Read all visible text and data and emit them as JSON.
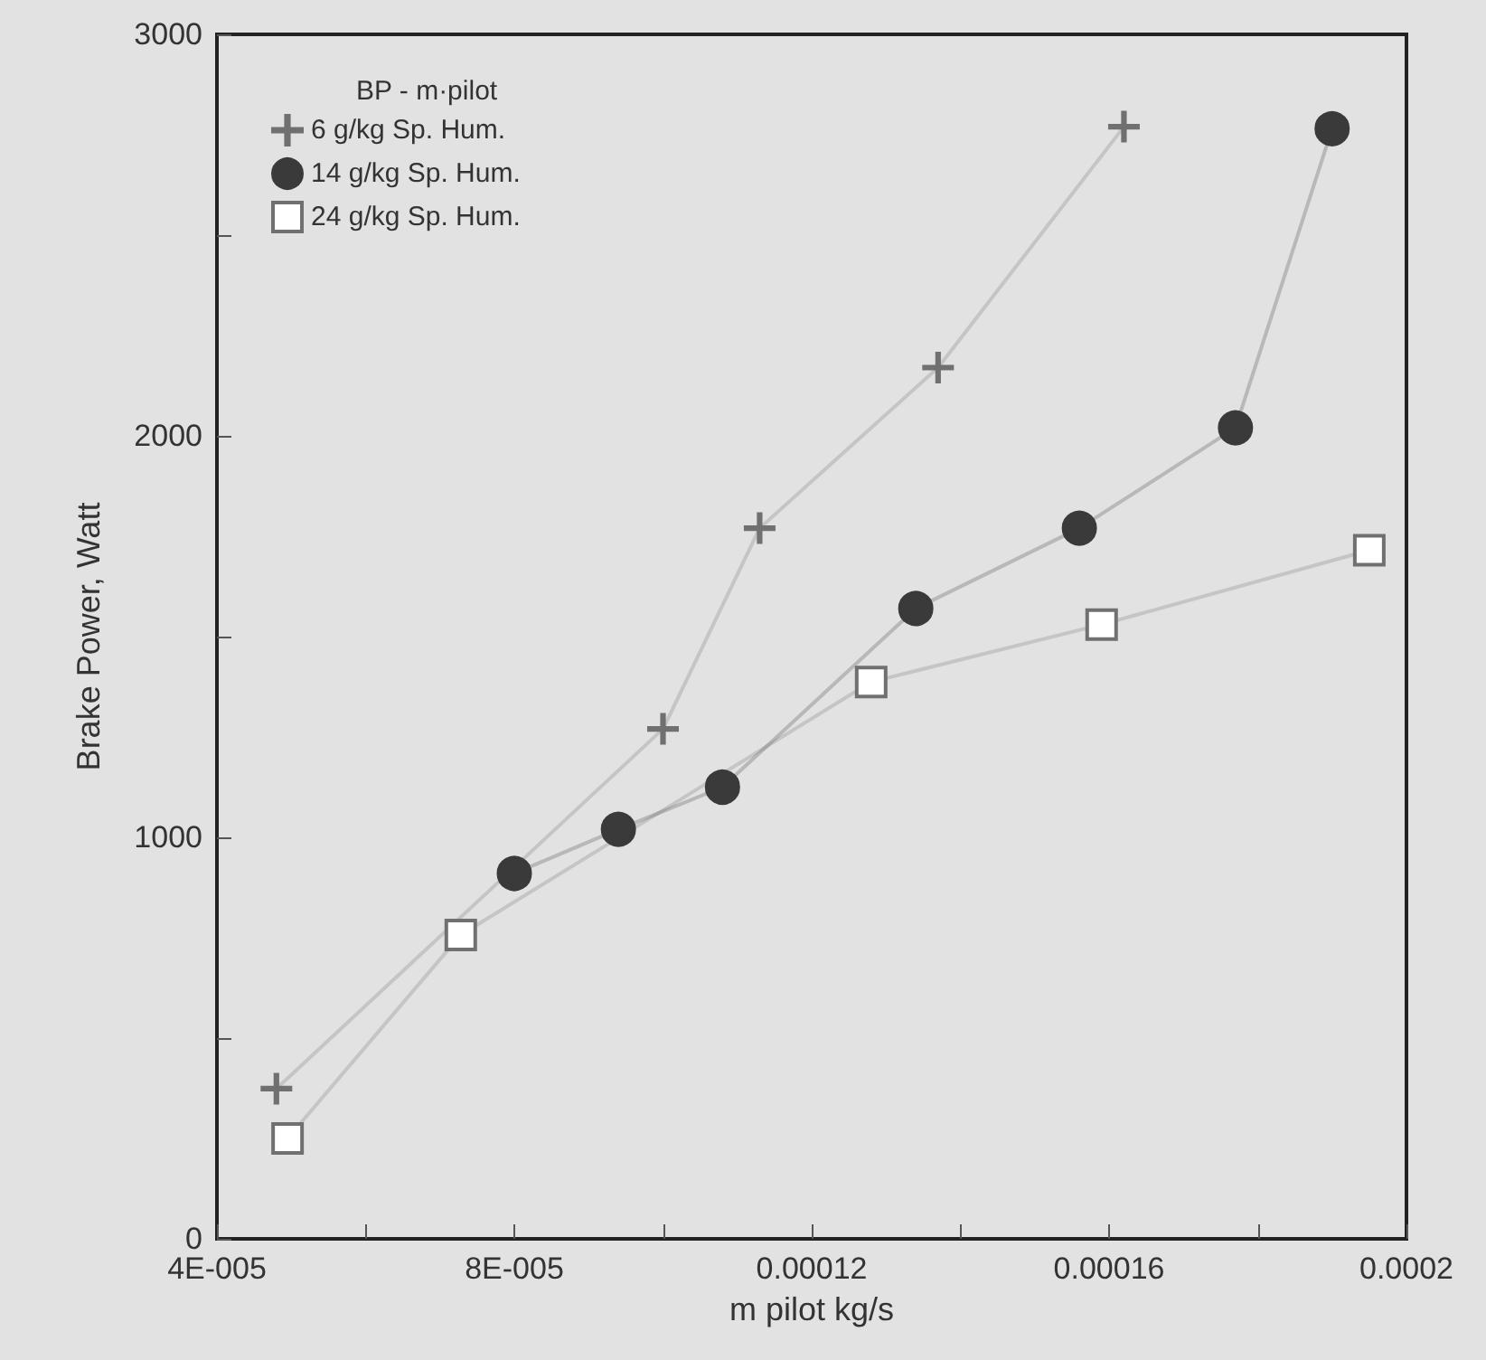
{
  "chart_data": {
    "type": "line",
    "xlabel": "m pilot kg/s",
    "ylabel": "Brake Power, Watt",
    "legend_title": "BP - m·pilot",
    "legend": "top left",
    "grid": false,
    "line_style": "solid",
    "xlim": [
      4e-05,
      0.0002
    ],
    "xticks": [
      {
        "value": 4e-05,
        "label": "4E-005"
      },
      {
        "value": 6e-05,
        "label": null
      },
      {
        "value": 8e-05,
        "label": "8E-005"
      },
      {
        "value": 0.0001,
        "label": null
      },
      0.00012,
      {
        "value": 0.00014,
        "label": null
      },
      0.00016,
      {
        "value": 0.00018,
        "label": null
      },
      0.0002
    ],
    "ylim": [
      0,
      3000
    ],
    "yticks": [
      0,
      {
        "value": 500,
        "label": null
      },
      1000,
      {
        "value": 1500,
        "label": null
      },
      2000,
      {
        "value": 2500,
        "label": null
      },
      3000
    ],
    "series": [
      {
        "name": "6 g/kg Sp. Hum.",
        "color": "#707070",
        "marker": "cross",
        "x": [
          4.8e-05,
          0.0001,
          0.000113,
          0.000137,
          0.000162
        ],
        "values": [
          374,
          1270,
          1770,
          2170,
          2770
        ]
      },
      {
        "name": "14 g/kg Sp. Hum.",
        "color": "#3a3a3a",
        "marker": "circle",
        "x": [
          8e-05,
          9.4e-05,
          0.000108,
          0.000134,
          0.000156,
          0.000177,
          0.00019
        ],
        "values": [
          910,
          1020,
          1125,
          1570,
          1770,
          2020,
          2765
        ]
      },
      {
        "name": "24 g/kg Sp. Hum.",
        "color": "#707070",
        "marker": "square",
        "x": [
          4.95e-05,
          7.28e-05,
          0.000128,
          0.000159,
          0.000195
        ],
        "values": [
          250,
          757,
          1387,
          1530,
          1715
        ]
      }
    ]
  }
}
